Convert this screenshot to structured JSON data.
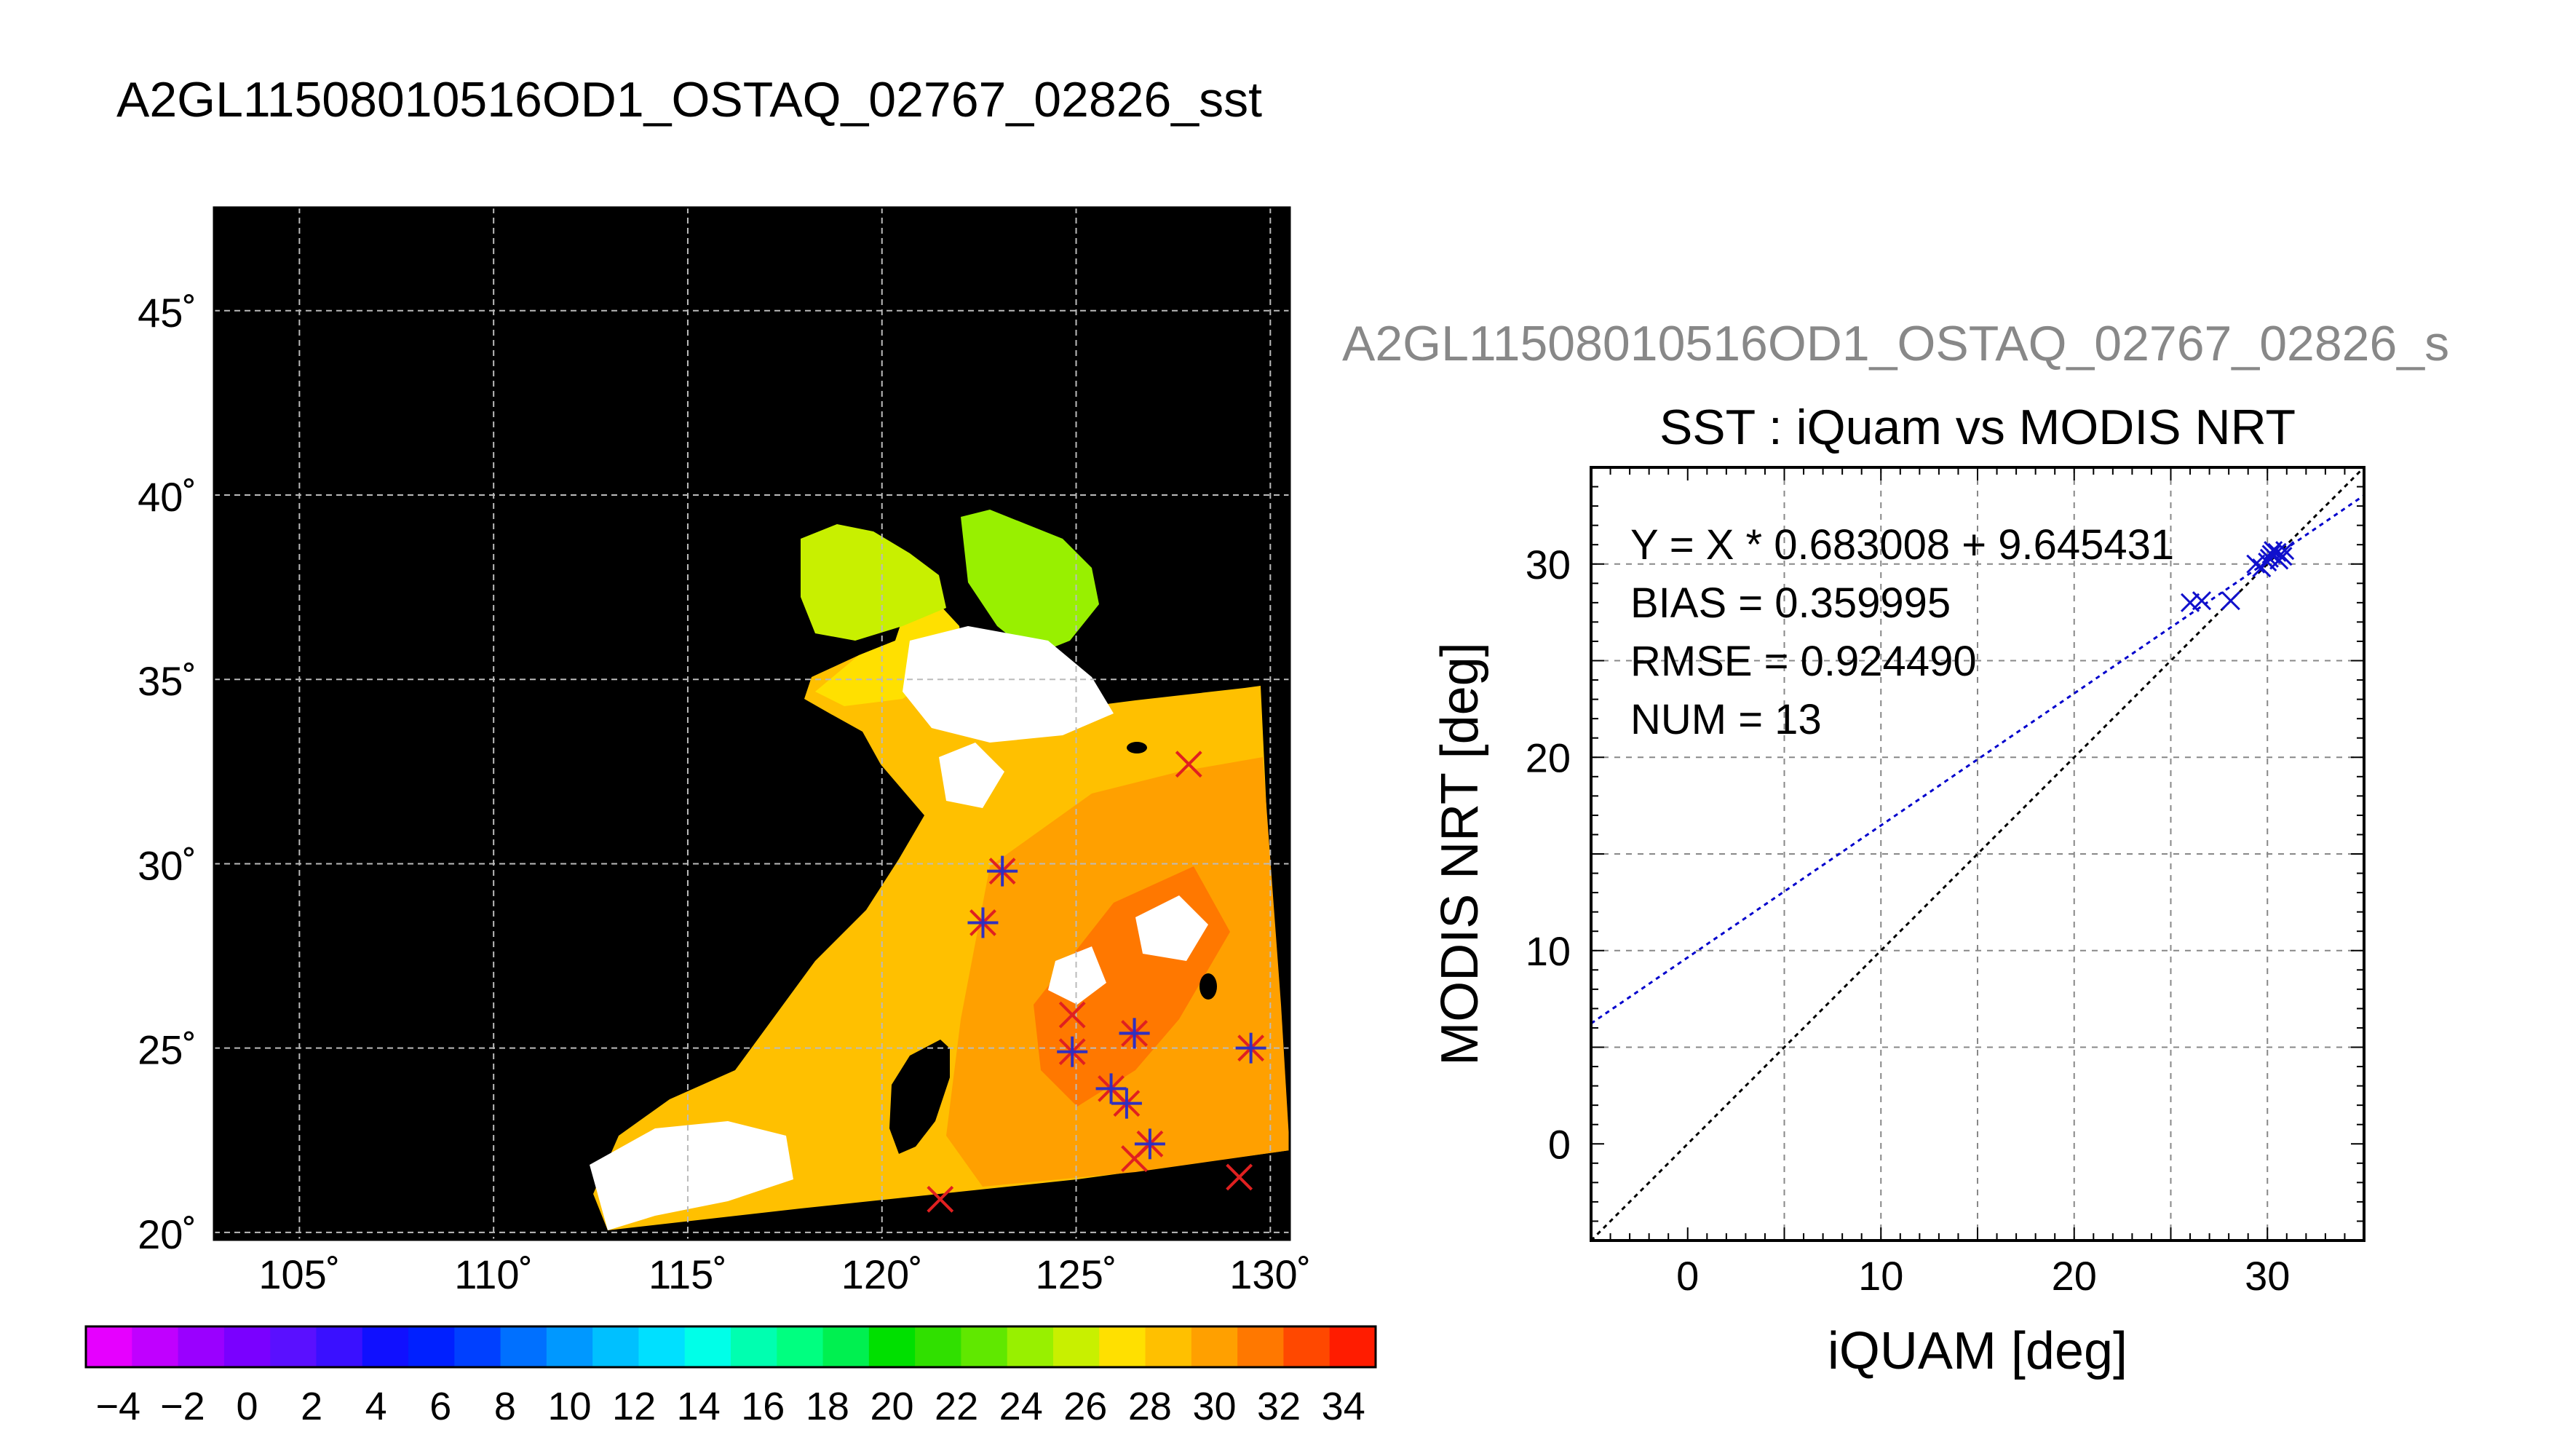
{
  "main_title": "A2GL11508010516OD1_OSTAQ_02767_02826_sst",
  "map": {
    "lat_ticks": [
      {
        "value": 45,
        "label": "45˚"
      },
      {
        "value": 40,
        "label": "40˚"
      },
      {
        "value": 35,
        "label": "35˚"
      },
      {
        "value": 30,
        "label": "30˚"
      },
      {
        "value": 25,
        "label": "25˚"
      },
      {
        "value": 20,
        "label": "20˚"
      }
    ],
    "lon_ticks": [
      {
        "value": 105,
        "label": "105˚"
      },
      {
        "value": 110,
        "label": "110˚"
      },
      {
        "value": 115,
        "label": "115˚"
      },
      {
        "value": 120,
        "label": "120˚"
      },
      {
        "value": 125,
        "label": "125˚"
      },
      {
        "value": 130,
        "label": "130˚"
      }
    ],
    "lon_range": [
      102.8,
      130.5
    ],
    "lat_range": [
      19.8,
      47.8
    ],
    "background_color": "#000000",
    "grid_color": "#bbbbbb",
    "match_points": [
      {
        "lon": 122.6,
        "lat": 28.4,
        "symbol": "asterisk"
      },
      {
        "lon": 123.1,
        "lat": 29.8,
        "symbol": "asterisk"
      },
      {
        "lon": 127.9,
        "lat": 32.7,
        "symbol": "x"
      },
      {
        "lon": 124.9,
        "lat": 25.9,
        "symbol": "x"
      },
      {
        "lon": 124.9,
        "lat": 24.9,
        "symbol": "asterisk"
      },
      {
        "lon": 126.5,
        "lat": 25.4,
        "symbol": "asterisk"
      },
      {
        "lon": 126.5,
        "lat": 25.4,
        "symbol": "plus"
      },
      {
        "lon": 125.9,
        "lat": 23.9,
        "symbol": "asterisk"
      },
      {
        "lon": 126.3,
        "lat": 23.5,
        "symbol": "asterisk"
      },
      {
        "lon": 126.5,
        "lat": 22.0,
        "symbol": "x"
      },
      {
        "lon": 126.9,
        "lat": 22.4,
        "symbol": "asterisk"
      },
      {
        "lon": 129.5,
        "lat": 25.0,
        "symbol": "asterisk"
      },
      {
        "lon": 129.2,
        "lat": 21.5,
        "symbol": "x"
      },
      {
        "lon": 121.5,
        "lat": 20.9,
        "symbol": "x"
      }
    ]
  },
  "colorbar": {
    "min": -5,
    "max": 35,
    "tick_labels": [
      "−4",
      "−2",
      "0",
      "2",
      "4",
      "6",
      "8",
      "10",
      "12",
      "14",
      "16",
      "18",
      "20",
      "22",
      "24",
      "26",
      "28",
      "30",
      "32",
      "34"
    ],
    "colors": [
      "#e600ff",
      "#c000ff",
      "#9a00ff",
      "#7a00ff",
      "#5a10ff",
      "#3a10ff",
      "#1010ff",
      "#0020ff",
      "#0040ff",
      "#0070ff",
      "#0098ff",
      "#00c0ff",
      "#00e0ff",
      "#00ffe8",
      "#00ffb0",
      "#00ff80",
      "#00f050",
      "#00e000",
      "#30e000",
      "#60e800",
      "#98f000",
      "#c8f000",
      "#ffe000",
      "#ffc000",
      "#ffa000",
      "#ff7800",
      "#ff4800",
      "#ff1c00"
    ]
  },
  "chart_data": {
    "type": "scatter",
    "overlay_title": "A2GL11508010516OD1_OSTAQ_02767_02826_s",
    "title": "SST : iQuam vs MODIS NRT",
    "xlabel": "iQUAM [deg]",
    "ylabel": "MODIS NRT [deg]",
    "xlim": [
      -5,
      35
    ],
    "ylim": [
      -5,
      35
    ],
    "xticks": [
      0,
      10,
      20,
      30
    ],
    "yticks": [
      0,
      10,
      20,
      30
    ],
    "grid": true,
    "stats": [
      "Y = X * 0.683008 + 9.645431",
      "BIAS = 0.359995",
      "RMSE = 0.924490",
      "NUM = 13"
    ],
    "fit_line": {
      "slope": 0.683008,
      "intercept": 9.645431,
      "color": "#0000cc"
    },
    "identity_line": {
      "slope": 1,
      "intercept": 0,
      "color": "#000000"
    },
    "point_color": "#1010cc",
    "points": [
      {
        "x": 26.0,
        "y": 28.0
      },
      {
        "x": 26.6,
        "y": 28.1
      },
      {
        "x": 28.1,
        "y": 28.1
      },
      {
        "x": 29.4,
        "y": 30.0
      },
      {
        "x": 29.7,
        "y": 29.8
      },
      {
        "x": 30.0,
        "y": 30.1
      },
      {
        "x": 30.2,
        "y": 30.5
      },
      {
        "x": 30.3,
        "y": 30.7
      },
      {
        "x": 30.5,
        "y": 30.6
      },
      {
        "x": 30.6,
        "y": 30.2
      },
      {
        "x": 30.8,
        "y": 30.4
      },
      {
        "x": 30.9,
        "y": 30.7
      },
      {
        "x": 30.1,
        "y": 30.3
      }
    ]
  }
}
